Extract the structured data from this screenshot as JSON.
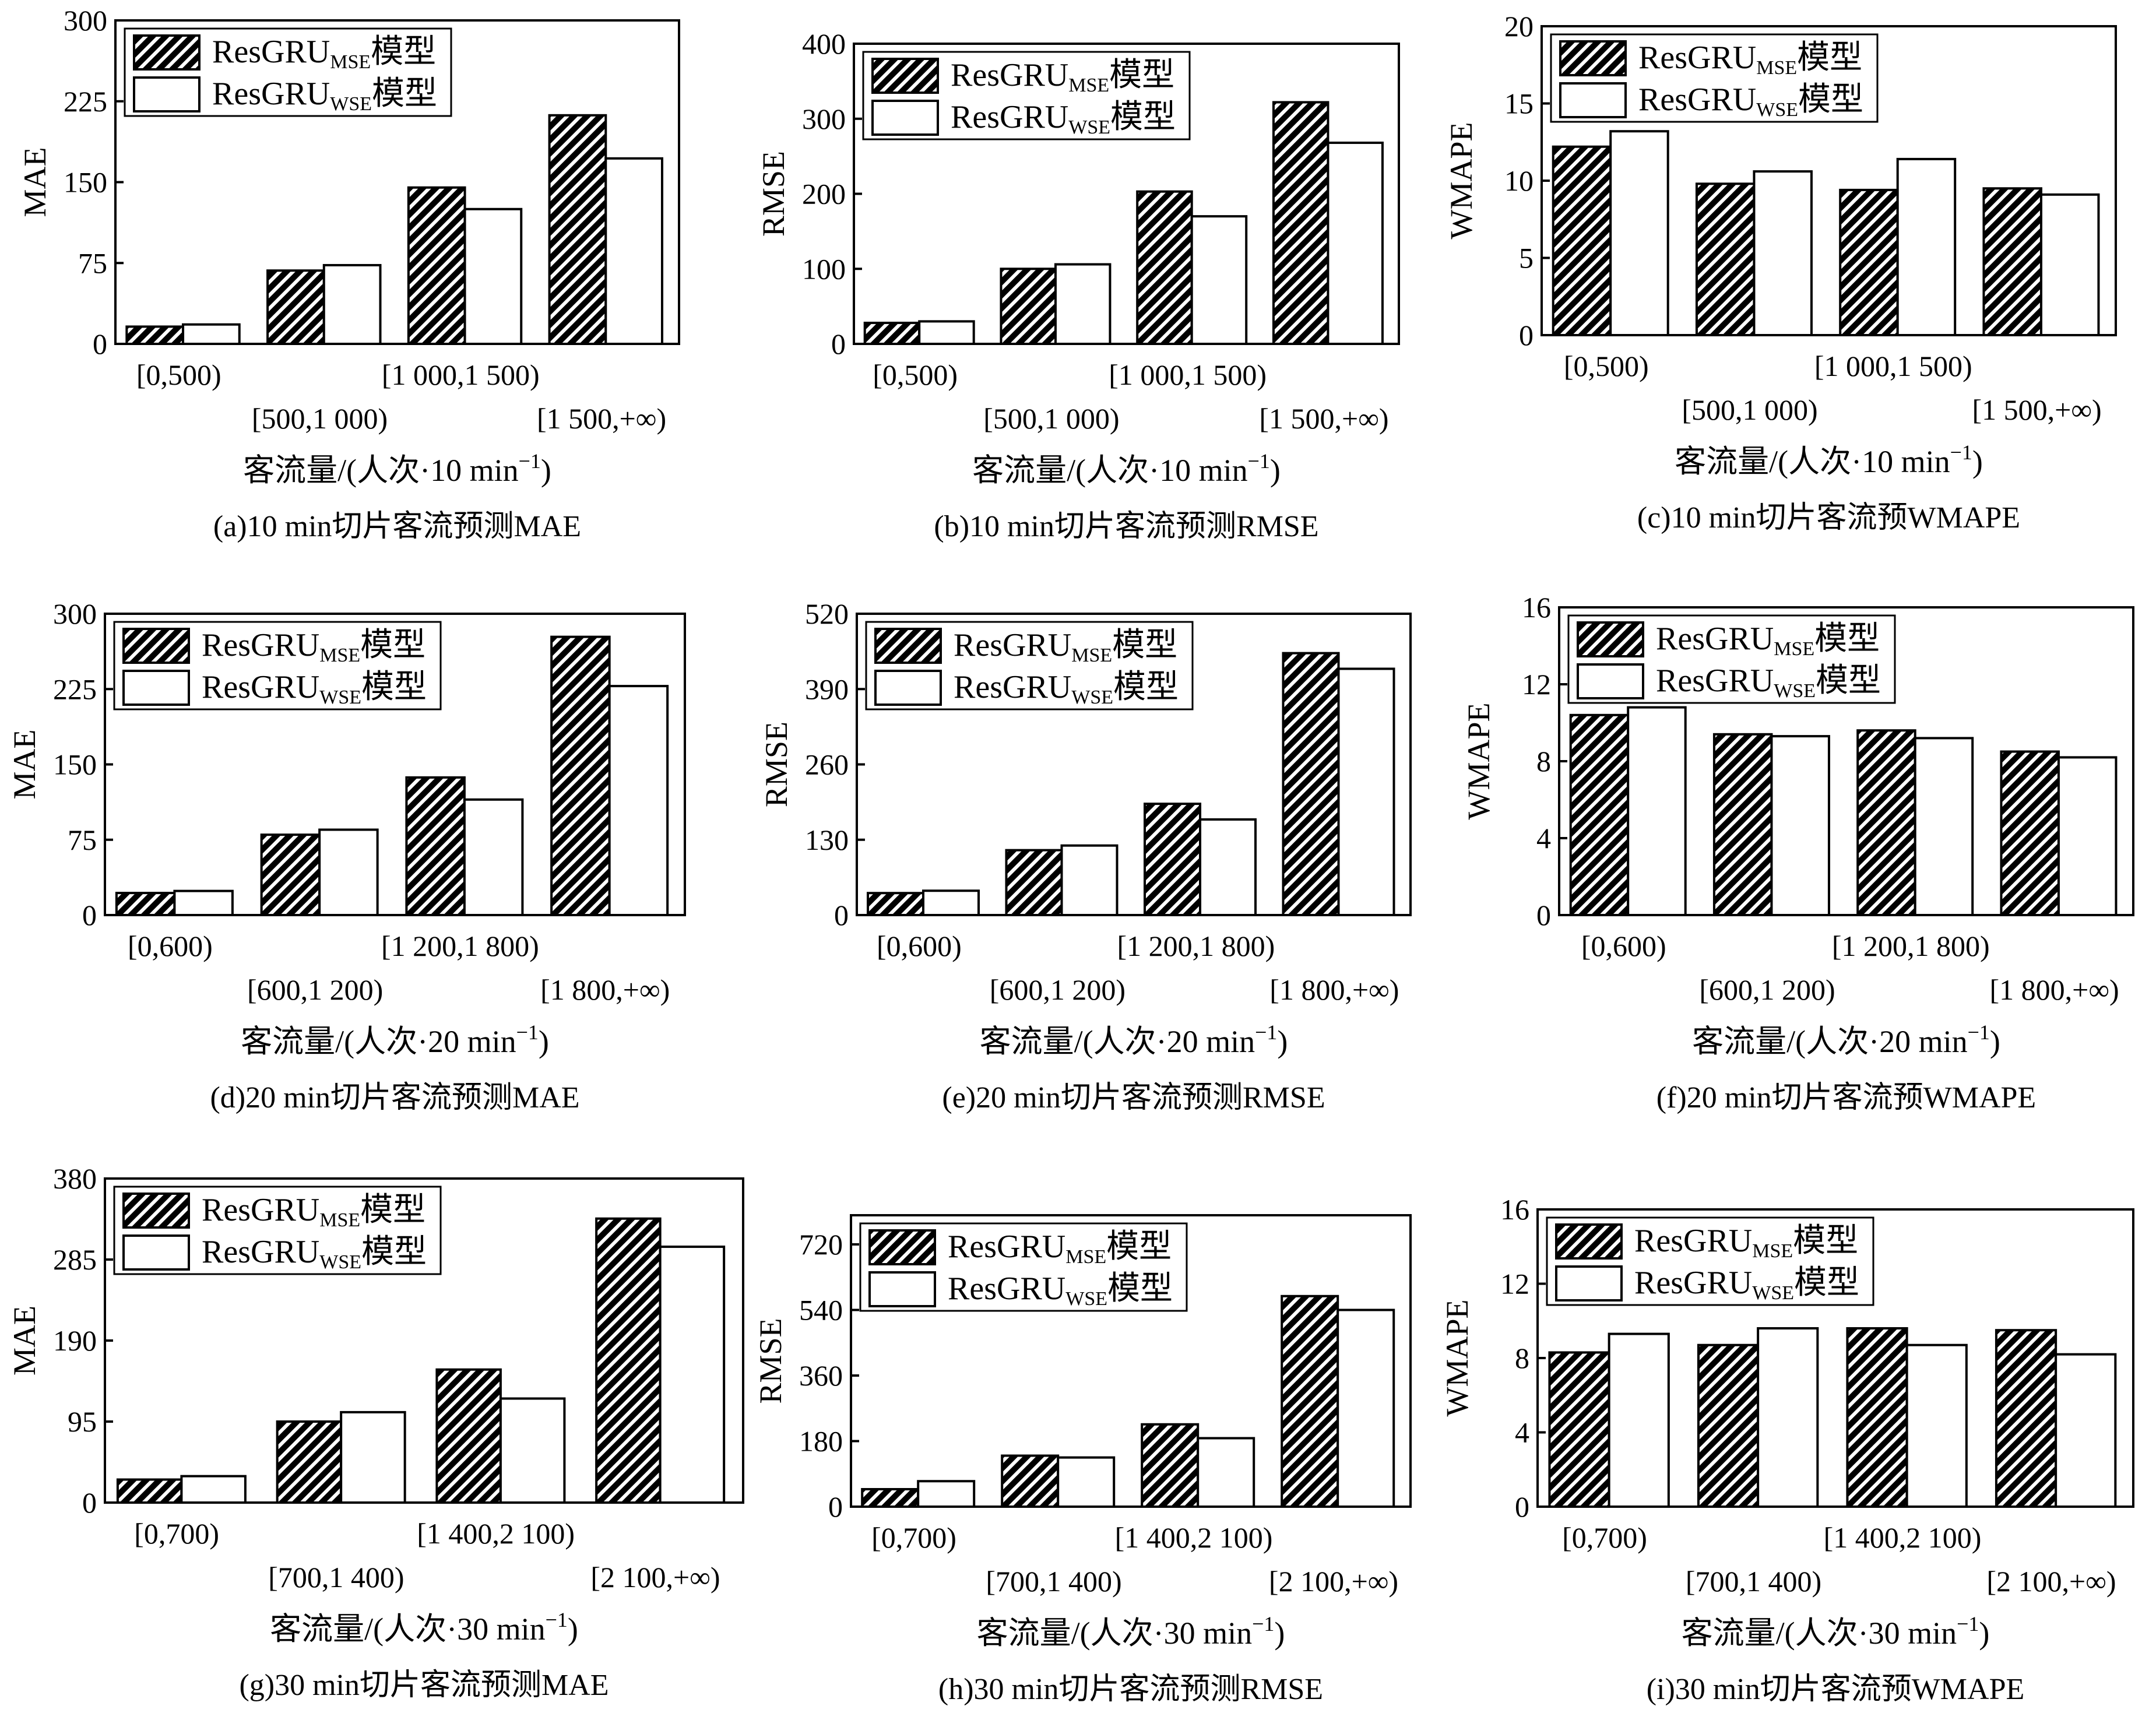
{
  "legend": {
    "series_mse": {
      "base": "ResGRU",
      "sub": "MSE",
      "suffix": "模型"
    },
    "series_wse": {
      "base": "ResGRU",
      "sub": "WSE",
      "suffix": "模型"
    }
  },
  "colors": {
    "mse_fill": "hatched-black",
    "wse_fill": "#ffffff",
    "axis": "#000000"
  },
  "chart_data": [
    {
      "id": "a",
      "type": "bar",
      "caption": "(a)10 min切片客流预测MAE",
      "ylabel": "MAE",
      "xlabel": {
        "text": "客流量/(人次·10 min",
        "sup": "−1",
        "close": ")"
      },
      "categories": [
        "[0,500)",
        "[500,1 000)",
        "[1 000,1 500)",
        "[1 500,+∞)"
      ],
      "yticks": [
        "0",
        "75",
        "150",
        "225",
        "300"
      ],
      "ylim": [
        0,
        300
      ],
      "series": [
        {
          "name": "ResGRU_MSE模型",
          "values": [
            16,
            68,
            145,
            212
          ]
        },
        {
          "name": "ResGRU_WSE模型",
          "values": [
            18,
            73,
            125,
            172
          ]
        }
      ]
    },
    {
      "id": "b",
      "type": "bar",
      "caption": "(b)10 min切片客流预测RMSE",
      "ylabel": "RMSE",
      "xlabel": {
        "text": "客流量/(人次·10 min",
        "sup": "−1",
        "close": ")"
      },
      "categories": [
        "[0,500)",
        "[500,1 000)",
        "[1 000,1 500)",
        "[1 500,+∞)"
      ],
      "yticks": [
        "0",
        "100",
        "200",
        "300",
        "400"
      ],
      "ylim": [
        0,
        400
      ],
      "series": [
        {
          "name": "ResGRU_MSE模型",
          "values": [
            28,
            100,
            203,
            322
          ]
        },
        {
          "name": "ResGRU_WSE模型",
          "values": [
            30,
            106,
            170,
            268
          ]
        }
      ]
    },
    {
      "id": "c",
      "type": "bar",
      "caption": "(c)10 min切片客流预WMAPE",
      "ylabel": "WMAPE",
      "xlabel": {
        "text": "客流量/(人次·10 min",
        "sup": "−1",
        "close": ")"
      },
      "categories": [
        "[0,500)",
        "[500,1 000)",
        "[1 000,1 500)",
        "[1 500,+∞)"
      ],
      "yticks": [
        "0",
        "5",
        "10",
        "15",
        "20"
      ],
      "ylim": [
        0,
        20
      ],
      "series": [
        {
          "name": "ResGRU_MSE模型",
          "values": [
            12.2,
            9.8,
            9.4,
            9.5
          ]
        },
        {
          "name": "ResGRU_WSE模型",
          "values": [
            13.2,
            10.6,
            11.4,
            9.1
          ]
        }
      ]
    },
    {
      "id": "d",
      "type": "bar",
      "caption": "(d)20 min切片客流预测MAE",
      "ylabel": "MAE",
      "xlabel": {
        "text": "客流量/(人次·20 min",
        "sup": "−1",
        "close": ")"
      },
      "categories": [
        "[0,600)",
        "[600,1 200)",
        "[1 200,1 800)",
        "[1 800,+∞)"
      ],
      "yticks": [
        "0",
        "75",
        "150",
        "225",
        "300"
      ],
      "ylim": [
        0,
        300
      ],
      "series": [
        {
          "name": "ResGRU_MSE模型",
          "values": [
            22,
            80,
            137,
            277
          ]
        },
        {
          "name": "ResGRU_WSE模型",
          "values": [
            24,
            85,
            115,
            228
          ]
        }
      ]
    },
    {
      "id": "e",
      "type": "bar",
      "caption": "(e)20 min切片客流预测RMSE",
      "ylabel": "RMSE",
      "xlabel": {
        "text": "客流量/(人次·20 min",
        "sup": "−1",
        "close": ")"
      },
      "categories": [
        "[0,600)",
        "[600,1 200)",
        "[1 200,1 800)",
        "[1 800,+∞)"
      ],
      "yticks": [
        "0",
        "130",
        "260",
        "390",
        "520"
      ],
      "ylim": [
        0,
        520
      ],
      "series": [
        {
          "name": "ResGRU_MSE模型",
          "values": [
            38,
            112,
            192,
            452
          ]
        },
        {
          "name": "ResGRU_WSE模型",
          "values": [
            42,
            120,
            165,
            425
          ]
        }
      ]
    },
    {
      "id": "f",
      "type": "bar",
      "caption": "(f)20 min切片客流预WMAPE",
      "ylabel": "WMAPE",
      "xlabel": {
        "text": "客流量/(人次·20 min",
        "sup": "−1",
        "close": ")"
      },
      "categories": [
        "[0,600)",
        "[600,1 200)",
        "[1 200,1 800)",
        "[1 800,+∞)"
      ],
      "yticks": [
        "0",
        "4",
        "8",
        "12",
        "16"
      ],
      "ylim": [
        0,
        16
      ],
      "series": [
        {
          "name": "ResGRU_MSE模型",
          "values": [
            10.4,
            9.4,
            9.6,
            8.5
          ]
        },
        {
          "name": "ResGRU_WSE模型",
          "values": [
            10.8,
            9.3,
            9.2,
            8.2
          ]
        }
      ]
    },
    {
      "id": "g",
      "type": "bar",
      "caption": "(g)30 min切片客流预测MAE",
      "ylabel": "MAE",
      "xlabel": {
        "text": "客流量/(人次·30 min",
        "sup": "−1",
        "close": ")"
      },
      "categories": [
        "[0,700)",
        "[700,1 400)",
        "[1 400,2 100)",
        "[2 100,+∞)"
      ],
      "yticks": [
        "0",
        "95",
        "190",
        "285",
        "380"
      ],
      "ylim": [
        0,
        380
      ],
      "series": [
        {
          "name": "ResGRU_MSE模型",
          "values": [
            27,
            95,
            156,
            333
          ]
        },
        {
          "name": "ResGRU_WSE模型",
          "values": [
            31,
            106,
            122,
            300
          ]
        }
      ]
    },
    {
      "id": "h",
      "type": "bar",
      "caption": "(h)30 min切片客流预测RMSE",
      "ylabel": "RMSE",
      "xlabel": {
        "text": "客流量/(人次·30 min",
        "sup": "−1",
        "close": ")"
      },
      "categories": [
        "[0,700)",
        "[700,1 400)",
        "[1 400,2 100)",
        "[2 100,+∞)"
      ],
      "yticks": [
        "0",
        "180",
        "360",
        "540",
        "720"
      ],
      "ylim": [
        0,
        800
      ],
      "series": [
        {
          "name": "ResGRU_MSE模型",
          "values": [
            48,
            140,
            226,
            578
          ]
        },
        {
          "name": "ResGRU_WSE模型",
          "values": [
            70,
            135,
            188,
            540
          ]
        }
      ]
    },
    {
      "id": "i",
      "type": "bar",
      "caption": "(i)30 min切片客流预WMAPE",
      "ylabel": "WMAPE",
      "xlabel": {
        "text": "客流量/(人次·30 min",
        "sup": "−1",
        "close": ")"
      },
      "categories": [
        "[0,700)",
        "[700,1 400)",
        "[1 400,2 100)",
        "[2 100,+∞)"
      ],
      "yticks": [
        "0",
        "4",
        "8",
        "12",
        "16"
      ],
      "ylim": [
        0,
        16
      ],
      "series": [
        {
          "name": "ResGRU_MSE模型",
          "values": [
            8.3,
            8.7,
            9.6,
            9.5
          ]
        },
        {
          "name": "ResGRU_WSE模型",
          "values": [
            9.3,
            9.6,
            8.7,
            8.2
          ]
        }
      ]
    }
  ]
}
